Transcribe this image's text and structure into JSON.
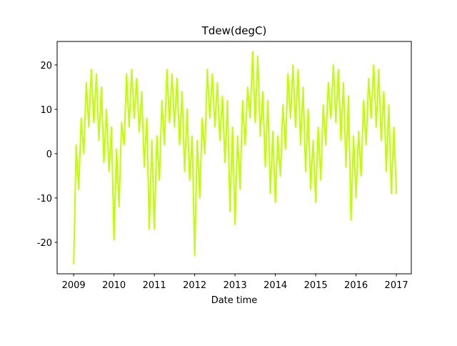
{
  "chart_data": {
    "type": "line",
    "title": "Tdew(degC)",
    "x_label": "Date time",
    "x": [
      2009,
      2009.0625,
      2009.125,
      2009.1875,
      2009.25,
      2009.3125,
      2009.375,
      2009.4375,
      2009.5,
      2009.5625,
      2009.625,
      2009.6875,
      2009.75,
      2009.8125,
      2009.875,
      2009.9375,
      2010,
      2010.0625,
      2010.125,
      2010.1875,
      2010.25,
      2010.3125,
      2010.375,
      2010.4375,
      2010.5,
      2010.5625,
      2010.625,
      2010.6875,
      2010.75,
      2010.8125,
      2010.875,
      2010.9375,
      2011,
      2011.0625,
      2011.125,
      2011.1875,
      2011.25,
      2011.3125,
      2011.375,
      2011.4375,
      2011.5,
      2011.5625,
      2011.625,
      2011.6875,
      2011.75,
      2011.8125,
      2011.875,
      2011.9375,
      2012,
      2012.0625,
      2012.125,
      2012.1875,
      2012.25,
      2012.3125,
      2012.375,
      2012.4375,
      2012.5,
      2012.5625,
      2012.625,
      2012.6875,
      2012.75,
      2012.8125,
      2012.875,
      2012.9375,
      2013,
      2013.0625,
      2013.125,
      2013.1875,
      2013.25,
      2013.3125,
      2013.375,
      2013.4375,
      2013.5,
      2013.5625,
      2013.625,
      2013.6875,
      2013.75,
      2013.8125,
      2013.875,
      2013.9375,
      2014,
      2014.0625,
      2014.125,
      2014.1875,
      2014.25,
      2014.3125,
      2014.375,
      2014.4375,
      2014.5,
      2014.5625,
      2014.625,
      2014.6875,
      2014.75,
      2014.8125,
      2014.875,
      2014.9375,
      2015,
      2015.0625,
      2015.125,
      2015.1875,
      2015.25,
      2015.3125,
      2015.375,
      2015.4375,
      2015.5,
      2015.5625,
      2015.625,
      2015.6875,
      2015.75,
      2015.8125,
      2015.875,
      2015.9375,
      2016,
      2016.0625,
      2016.125,
      2016.1875,
      2016.25,
      2016.3125,
      2016.375,
      2016.4375,
      2016.5,
      2016.5625,
      2016.625,
      2016.6875,
      2016.75,
      2016.8125,
      2016.875,
      2016.9375,
      2017
    ],
    "values": [
      -25,
      2,
      -8,
      8,
      0,
      16,
      6,
      19,
      7,
      18,
      3,
      15,
      -2,
      10,
      -4,
      6,
      -19.5,
      1,
      -12,
      7,
      2,
      18,
      6,
      19,
      8,
      17,
      5,
      14,
      -3,
      8,
      -17,
      3,
      -17,
      4,
      -6,
      12,
      2,
      19,
      7,
      18,
      6,
      17,
      2,
      14,
      -4,
      10,
      -6,
      4,
      -23,
      3,
      -10,
      8,
      0,
      19,
      8,
      18,
      6,
      16,
      3,
      13,
      -2,
      12,
      -13,
      6,
      -16,
      4,
      -8,
      12,
      2,
      15,
      8,
      23,
      7,
      22,
      4,
      14,
      -3,
      12,
      -9,
      5,
      -11,
      4,
      -5,
      11,
      1,
      18,
      8,
      20,
      6,
      19,
      2,
      15,
      -4,
      10,
      -8,
      3,
      -11,
      6,
      -6,
      11,
      2,
      16,
      8,
      20,
      7,
      19,
      3,
      16,
      -3,
      13,
      -15,
      4,
      -10,
      5,
      -5,
      12,
      2,
      17,
      8,
      20,
      6,
      19,
      3,
      14,
      -4,
      11,
      -9,
      6,
      -9
    ],
    "color": "#bfff00",
    "xlim": [
      2008.59,
      2017.37
    ],
    "xticks": [
      2009,
      2010,
      2011,
      2012,
      2013,
      2014,
      2015,
      2016,
      2017
    ],
    "ylim": [
      -27.1,
      25.3
    ],
    "yticks": [
      -20,
      -10,
      0,
      10,
      20
    ],
    "grid": false
  }
}
